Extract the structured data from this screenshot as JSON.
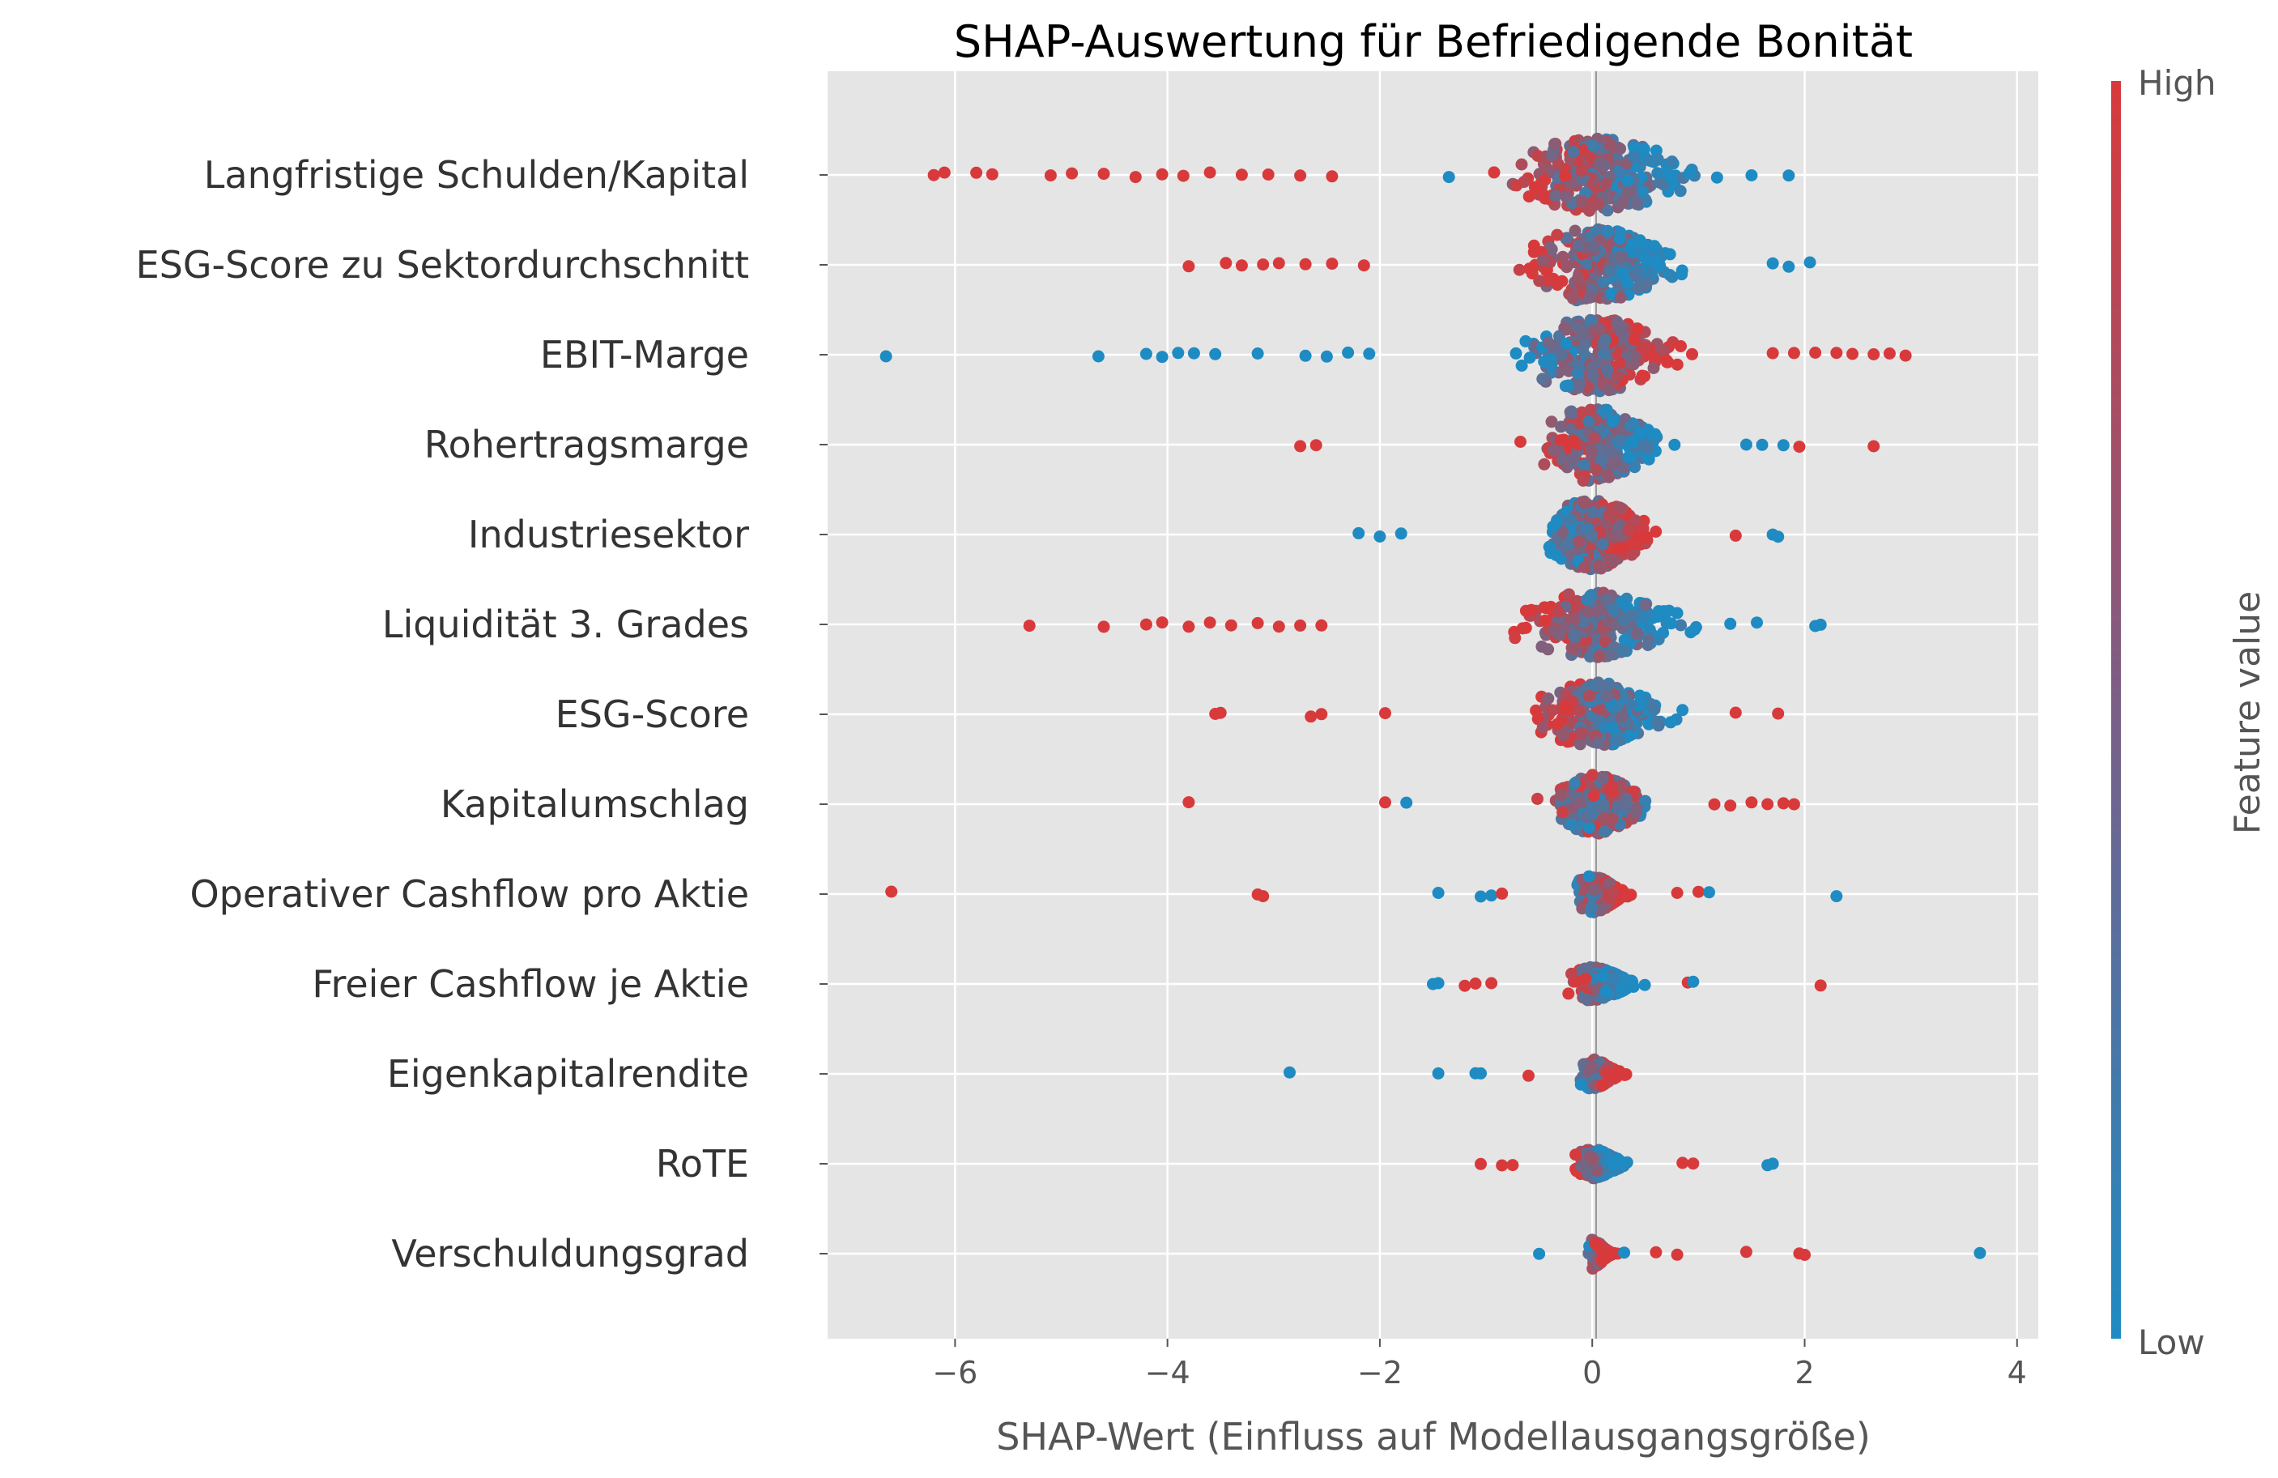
{
  "chart_data": {
    "type": "scatter",
    "subtype": "shap-beeswarm",
    "title": "SHAP-Auswertung für Befriedigende Bonität",
    "xlabel": "SHAP-Wert (Einfluss auf Modellausgangsgröße)",
    "ylabel": "",
    "xlim": [
      -7.2,
      4.2
    ],
    "xticks": [
      -6,
      -4,
      -2,
      0,
      2,
      4
    ],
    "xtick_labels": [
      "−6",
      "−4",
      "−2",
      "0",
      "2",
      "4"
    ],
    "grid": true,
    "colorbar": {
      "label": "Feature value",
      "high_label": "High",
      "low_label": "Low",
      "high_color": "#d83a3c",
      "low_color": "#1e8bc3"
    },
    "colors": {
      "background": "#e5e5e5",
      "grid": "#ffffff",
      "text": "#333333"
    },
    "features": [
      {
        "name": "Langfristige Schulden/Kapital",
        "min": -6.2,
        "max": 1.85,
        "spread": 1.2,
        "width": 1.0,
        "high_side": "neg",
        "outliers": [
          [
            -6.2,
            "h"
          ],
          [
            -6.1,
            "h"
          ],
          [
            -5.8,
            "h"
          ],
          [
            -5.65,
            "h"
          ],
          [
            -5.1,
            "h"
          ],
          [
            -4.9,
            "h"
          ],
          [
            -4.6,
            "h"
          ],
          [
            -4.3,
            "h"
          ],
          [
            -4.05,
            "h"
          ],
          [
            -3.85,
            "h"
          ],
          [
            -3.6,
            "h"
          ],
          [
            -3.3,
            "h"
          ],
          [
            -3.05,
            "h"
          ],
          [
            -2.75,
            "h"
          ],
          [
            -2.45,
            "h"
          ],
          [
            -1.35,
            "l"
          ],
          [
            1.5,
            "l"
          ],
          [
            1.85,
            "l"
          ]
        ]
      },
      {
        "name": "ESG-Score zu Sektordurchschnitt",
        "min": -3.8,
        "max": 2.05,
        "spread": 0.95,
        "width": 1.0,
        "high_side": "neg",
        "outliers": [
          [
            -3.8,
            "h"
          ],
          [
            -3.45,
            "h"
          ],
          [
            -3.3,
            "h"
          ],
          [
            -3.1,
            "h"
          ],
          [
            -2.95,
            "h"
          ],
          [
            -2.7,
            "h"
          ],
          [
            -2.45,
            "h"
          ],
          [
            -2.15,
            "h"
          ],
          [
            1.7,
            "l"
          ],
          [
            1.85,
            "l"
          ],
          [
            2.05,
            "l"
          ]
        ]
      },
      {
        "name": "EBIT-Marge",
        "min": -6.65,
        "max": 2.95,
        "spread": 1.0,
        "width": 1.0,
        "high_side": "pos",
        "outliers": [
          [
            -6.65,
            "l"
          ],
          [
            -4.65,
            "l"
          ],
          [
            -4.2,
            "l"
          ],
          [
            -4.05,
            "l"
          ],
          [
            -3.9,
            "l"
          ],
          [
            -3.75,
            "l"
          ],
          [
            -3.55,
            "l"
          ],
          [
            -3.15,
            "l"
          ],
          [
            -2.7,
            "l"
          ],
          [
            -2.5,
            "l"
          ],
          [
            -2.3,
            "l"
          ],
          [
            -2.1,
            "l"
          ],
          [
            1.7,
            "h"
          ],
          [
            1.9,
            "h"
          ],
          [
            2.1,
            "h"
          ],
          [
            2.3,
            "h"
          ],
          [
            2.45,
            "h"
          ],
          [
            2.65,
            "h"
          ],
          [
            2.8,
            "h"
          ],
          [
            2.95,
            "h"
          ]
        ]
      },
      {
        "name": "Rohertragsmarge",
        "min": -2.8,
        "max": 2.7,
        "spread": 0.75,
        "width": 1.0,
        "high_side": "neg",
        "outliers": [
          [
            -2.75,
            "h"
          ],
          [
            -2.6,
            "h"
          ],
          [
            1.45,
            "l"
          ],
          [
            1.6,
            "l"
          ],
          [
            1.8,
            "l"
          ],
          [
            1.95,
            "h"
          ],
          [
            2.65,
            "h"
          ]
        ]
      },
      {
        "name": "Industriesektor",
        "min": -2.2,
        "max": 1.75,
        "spread": 0.65,
        "width": 0.95,
        "high_side": "pos",
        "outliers": [
          [
            -2.2,
            "l"
          ],
          [
            -2.0,
            "l"
          ],
          [
            -1.8,
            "l"
          ],
          [
            1.35,
            "h"
          ],
          [
            1.7,
            "l"
          ],
          [
            1.75,
            "l"
          ]
        ]
      },
      {
        "name": "Liquidität 3. Grades",
        "min": -5.3,
        "max": 2.15,
        "spread": 1.0,
        "width": 0.9,
        "high_side": "neg",
        "outliers": [
          [
            -5.3,
            "h"
          ],
          [
            -4.6,
            "h"
          ],
          [
            -4.2,
            "h"
          ],
          [
            -4.05,
            "h"
          ],
          [
            -3.8,
            "h"
          ],
          [
            -3.6,
            "h"
          ],
          [
            -3.4,
            "h"
          ],
          [
            -3.15,
            "h"
          ],
          [
            -2.95,
            "h"
          ],
          [
            -2.75,
            "h"
          ],
          [
            -2.55,
            "h"
          ],
          [
            1.3,
            "l"
          ],
          [
            1.55,
            "l"
          ],
          [
            2.1,
            "l"
          ],
          [
            2.15,
            "l"
          ]
        ]
      },
      {
        "name": "ESG-Score",
        "min": -3.55,
        "max": 1.75,
        "spread": 0.8,
        "width": 0.9,
        "high_side": "neg",
        "outliers": [
          [
            -3.55,
            "h"
          ],
          [
            -3.5,
            "h"
          ],
          [
            -2.65,
            "h"
          ],
          [
            -2.55,
            "h"
          ],
          [
            -1.95,
            "h"
          ],
          [
            1.35,
            "h"
          ],
          [
            1.75,
            "h"
          ]
        ]
      },
      {
        "name": "Kapitalumschlag",
        "min": -3.8,
        "max": 1.9,
        "spread": 0.6,
        "width": 0.8,
        "high_side": "mixed",
        "outliers": [
          [
            -3.8,
            "h"
          ],
          [
            -1.95,
            "h"
          ],
          [
            -1.75,
            "l"
          ],
          [
            1.15,
            "h"
          ],
          [
            1.3,
            "h"
          ],
          [
            1.5,
            "h"
          ],
          [
            1.65,
            "h"
          ],
          [
            1.8,
            "h"
          ],
          [
            1.9,
            "h"
          ]
        ]
      },
      {
        "name": "Operativer Cashflow pro Aktie",
        "min": -6.6,
        "max": 2.3,
        "spread": 0.3,
        "width": 0.5,
        "high_side": "pos",
        "outliers": [
          [
            -6.6,
            "h"
          ],
          [
            -3.15,
            "h"
          ],
          [
            -3.1,
            "h"
          ],
          [
            -1.45,
            "l"
          ],
          [
            -1.05,
            "l"
          ],
          [
            -0.95,
            "l"
          ],
          [
            -0.85,
            "h"
          ],
          [
            0.8,
            "h"
          ],
          [
            1.0,
            "h"
          ],
          [
            1.1,
            "l"
          ],
          [
            2.3,
            "l"
          ]
        ]
      },
      {
        "name": "Freier Cashflow je Aktie",
        "min": -1.5,
        "max": 2.15,
        "spread": 0.4,
        "width": 0.45,
        "high_side": "neg",
        "outliers": [
          [
            -1.5,
            "l"
          ],
          [
            -1.45,
            "l"
          ],
          [
            -1.2,
            "h"
          ],
          [
            -1.1,
            "h"
          ],
          [
            -0.95,
            "h"
          ],
          [
            0.9,
            "h"
          ],
          [
            0.95,
            "l"
          ],
          [
            2.15,
            "h"
          ]
        ]
      },
      {
        "name": "Eigenkapitalrendite",
        "min": -2.85,
        "max": 0.4,
        "spread": 0.25,
        "width": 0.4,
        "high_side": "pos",
        "outliers": [
          [
            -2.85,
            "l"
          ],
          [
            -1.45,
            "l"
          ],
          [
            -1.1,
            "l"
          ],
          [
            -1.05,
            "l"
          ],
          [
            -0.6,
            "h"
          ]
        ]
      },
      {
        "name": "RoTE",
        "min": -1.05,
        "max": 1.7,
        "spread": 0.3,
        "width": 0.4,
        "high_side": "neg",
        "outliers": [
          [
            -1.05,
            "h"
          ],
          [
            -0.85,
            "h"
          ],
          [
            -0.75,
            "h"
          ],
          [
            0.85,
            "h"
          ],
          [
            0.95,
            "h"
          ],
          [
            1.65,
            "l"
          ],
          [
            1.7,
            "l"
          ]
        ]
      },
      {
        "name": "Verschuldungsgrad",
        "min": -0.5,
        "max": 3.65,
        "spread": 0.15,
        "width": 0.4,
        "high_side": "pos",
        "outliers": [
          [
            -0.5,
            "l"
          ],
          [
            0.3,
            "l"
          ],
          [
            0.6,
            "h"
          ],
          [
            0.8,
            "h"
          ],
          [
            1.45,
            "h"
          ],
          [
            1.95,
            "h"
          ],
          [
            2.0,
            "h"
          ],
          [
            3.65,
            "l"
          ]
        ]
      }
    ]
  }
}
